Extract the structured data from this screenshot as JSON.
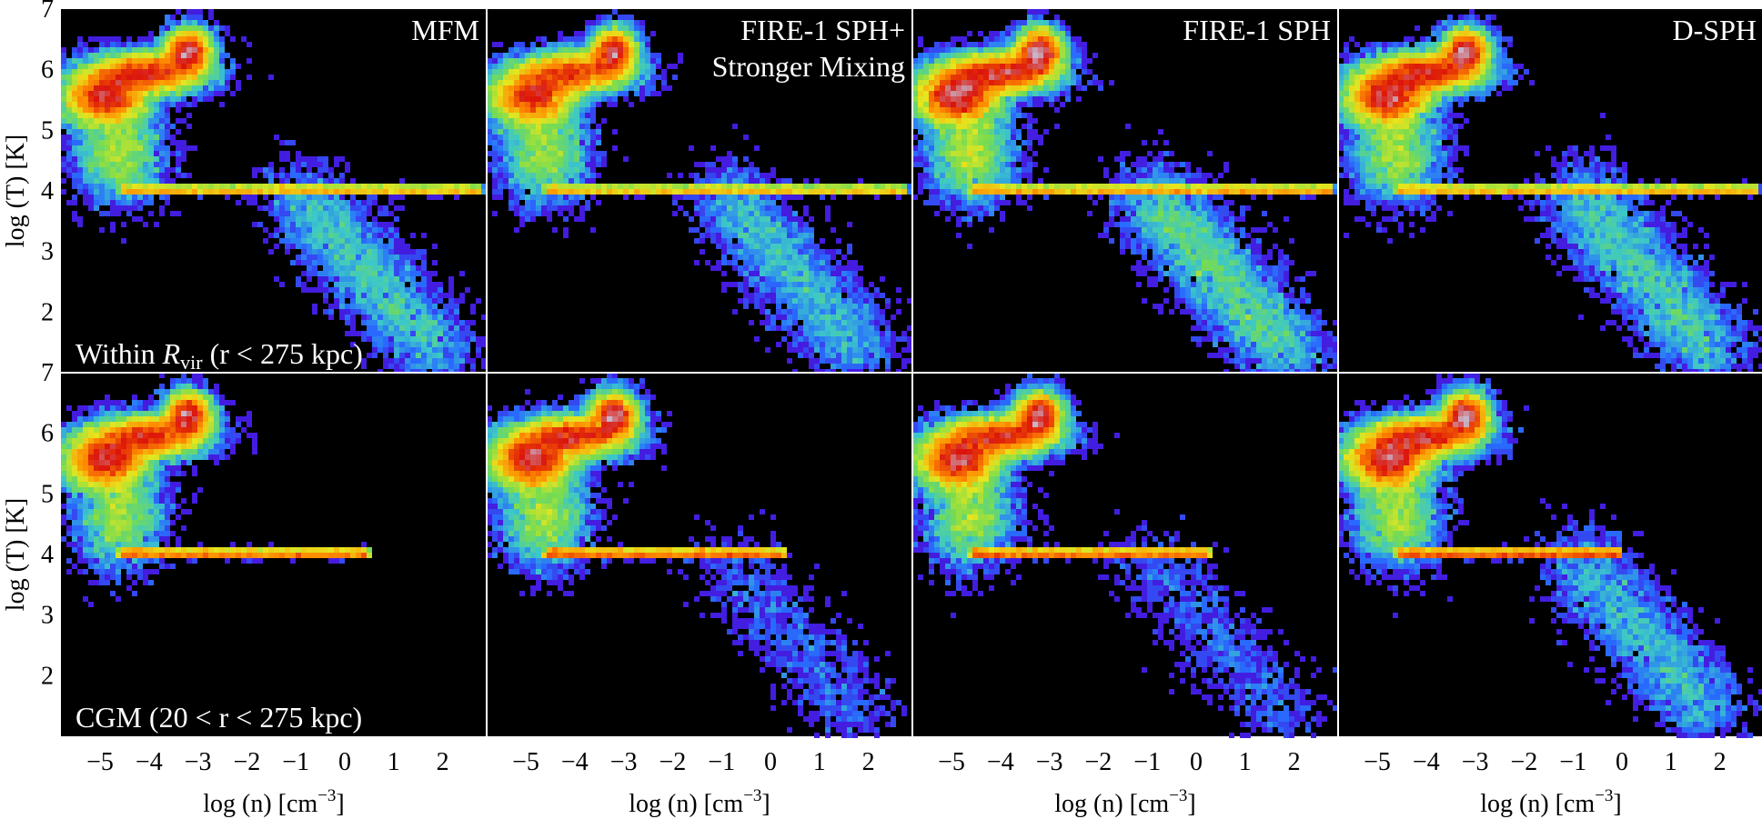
{
  "chart_data": {
    "type": "heatmap",
    "panels": [
      {
        "row": 0,
        "col": 0,
        "title": "MFM",
        "row_label": "Within R_vir (r < 275 kpc)"
      },
      {
        "row": 0,
        "col": 1,
        "title": "FIRE-1 SPH+ Stronger Mixing"
      },
      {
        "row": 0,
        "col": 2,
        "title": "FIRE-1 SPH"
      },
      {
        "row": 0,
        "col": 3,
        "title": "D-SPH"
      },
      {
        "row": 1,
        "col": 0,
        "title": "",
        "row_label": "CGM (20 < r < 275 kpc)"
      },
      {
        "row": 1,
        "col": 1,
        "title": ""
      },
      {
        "row": 1,
        "col": 2,
        "title": ""
      },
      {
        "row": 1,
        "col": 3,
        "title": ""
      }
    ],
    "xlabel": "log (n) [cm−3]",
    "ylabel": "log (T) [K]",
    "xlim": [
      -5.8,
      2.9
    ],
    "ylim": [
      1,
      7
    ],
    "xticks": [
      -5,
      -4,
      -3,
      -2,
      -1,
      0,
      1,
      2
    ],
    "xtick_labels": [
      "−5",
      "−4",
      "−3",
      "−2",
      "−1",
      "0",
      "1",
      "2"
    ],
    "yticks": [
      2,
      3,
      4,
      5,
      6,
      7
    ],
    "ytick_labels": [
      "2",
      "3",
      "4",
      "5",
      "6",
      "7"
    ],
    "colormap": "jet on black background",
    "background": "#000000"
  },
  "labels": {
    "xlabel_main": "log (n) [cm",
    "xlabel_exp": "−3",
    "xlabel_close": "]",
    "ylabel_main": "log (T) [K]",
    "row0_label_a": "Within ",
    "row0_label_R": "R",
    "row0_label_sub": "vir",
    "row0_label_b": " (r < 275 kpc)",
    "row1_label": "CGM  (20 < r < 275 kpc)",
    "title_0": "MFM",
    "title_1a": "FIRE-1 SPH+",
    "title_1b": "Stronger Mixing",
    "title_2": "FIRE-1 SPH",
    "title_3": "D-SPH"
  }
}
